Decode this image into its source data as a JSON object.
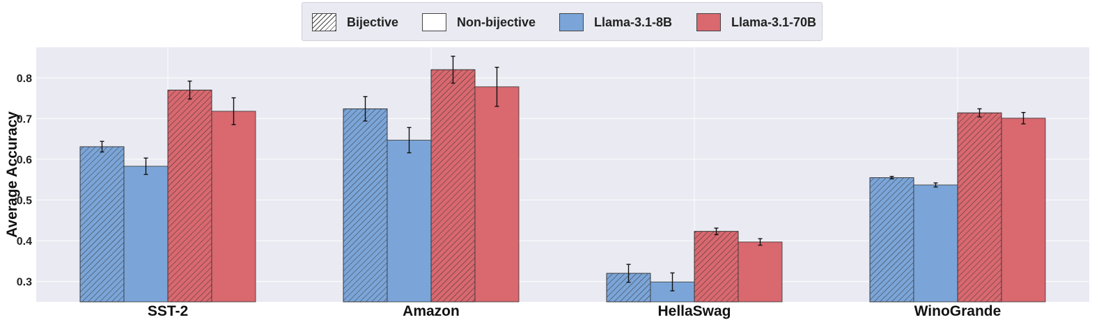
{
  "chart_data": {
    "type": "bar",
    "categories": [
      "SST-2",
      "Amazon",
      "HellaSwag",
      "WinoGrande"
    ],
    "ylabel": "Average Accuracy",
    "xlabel": "",
    "ylim": [
      0.25,
      0.875
    ],
    "yticks": [
      "0.3",
      "0.4",
      "0.5",
      "0.6",
      "0.7",
      "0.8"
    ],
    "grid": true,
    "legend_position": "top-center",
    "legend": [
      {
        "label": "Bijective",
        "style": "hatched",
        "color": "#ffffff"
      },
      {
        "label": "Non-bijective",
        "style": "solid",
        "color": "#ffffff"
      },
      {
        "label": "Llama-3.1-8B",
        "style": "solid",
        "color": "#7ba5d8"
      },
      {
        "label": "Llama-3.1-70B",
        "style": "solid",
        "color": "#d9686f"
      }
    ],
    "series": [
      {
        "model": "Llama-3.1-8B",
        "variant": "Bijective",
        "color": "#7ba5d8",
        "hatched": true,
        "values": [
          0.631,
          0.724,
          0.32,
          0.555
        ],
        "errors": [
          0.013,
          0.03,
          0.022,
          0.003
        ]
      },
      {
        "model": "Llama-3.1-8B",
        "variant": "Non-bijective",
        "color": "#7ba5d8",
        "hatched": false,
        "values": [
          0.583,
          0.647,
          0.299,
          0.537
        ],
        "errors": [
          0.02,
          0.031,
          0.022,
          0.005
        ]
      },
      {
        "model": "Llama-3.1-70B",
        "variant": "Bijective",
        "color": "#d9686f",
        "hatched": true,
        "values": [
          0.77,
          0.82,
          0.423,
          0.714
        ],
        "errors": [
          0.022,
          0.033,
          0.008,
          0.01
        ]
      },
      {
        "model": "Llama-3.1-70B",
        "variant": "Non-bijective",
        "color": "#d9686f",
        "hatched": false,
        "values": [
          0.718,
          0.778,
          0.397,
          0.701
        ],
        "errors": [
          0.033,
          0.048,
          0.008,
          0.014
        ]
      }
    ]
  }
}
